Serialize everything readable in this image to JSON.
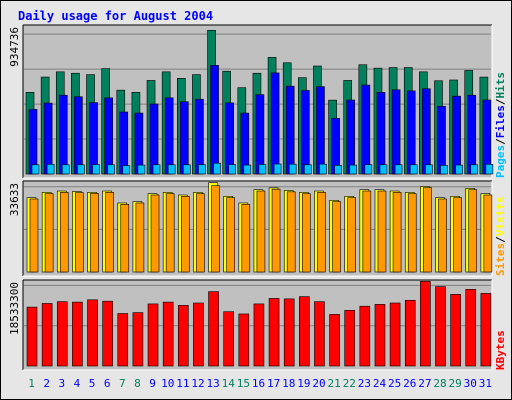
{
  "chart_data": [
    {
      "type": "bar",
      "title": "Daily usage for August 2004",
      "panel": "hits-files-pages",
      "categories": [
        "1",
        "2",
        "3",
        "4",
        "5",
        "6",
        "7",
        "8",
        "9",
        "10",
        "11",
        "12",
        "13",
        "14",
        "15",
        "16",
        "17",
        "18",
        "19",
        "20",
        "21",
        "22",
        "23",
        "24",
        "25",
        "26",
        "27",
        "28",
        "29",
        "30",
        "31"
      ],
      "weekend_days": [
        "1",
        "7",
        "8",
        "14",
        "15",
        "21",
        "22",
        "28",
        "29"
      ],
      "ylim": [
        0,
        934736
      ],
      "ymax_label": "934736",
      "series": [
        {
          "name": "Hits",
          "color": "#00805c",
          "values": [
            531000,
            630000,
            664000,
            655000,
            646000,
            685000,
            545000,
            531000,
            608000,
            664000,
            622000,
            646000,
            934000,
            668000,
            561000,
            655000,
            758000,
            723000,
            626000,
            702000,
            480000,
            608000,
            710000,
            688000,
            692000,
            692000,
            664000,
            606000,
            611000,
            673000,
            630000
          ]
        },
        {
          "name": "Files",
          "color": "#0000ff",
          "values": [
            420000,
            461000,
            512000,
            502000,
            464000,
            495000,
            403000,
            396000,
            455000,
            495000,
            470000,
            486000,
            706000,
            462000,
            396000,
            516000,
            657000,
            571000,
            543000,
            568000,
            362000,
            481000,
            578000,
            531000,
            547000,
            540000,
            554000,
            440000,
            506000,
            512000,
            481000
          ]
        },
        {
          "name": "Pages",
          "color": "#00c0ff",
          "values": [
            60000,
            63000,
            60000,
            60000,
            61000,
            60000,
            55000,
            58000,
            60000,
            60000,
            60000,
            61000,
            70000,
            61000,
            58000,
            62000,
            65000,
            64000,
            60000,
            64000,
            56000,
            58000,
            61000,
            60000,
            60000,
            60000,
            60000,
            56000,
            58000,
            60000,
            63000
          ]
        }
      ],
      "legend": [
        {
          "label": "Pages",
          "color": "#00c0ff"
        },
        {
          "label": "/",
          "color": "#000000"
        },
        {
          "label": "Files",
          "color": "#0000ff"
        },
        {
          "label": "/",
          "color": "#000000"
        },
        {
          "label": "Hits",
          "color": "#00805c"
        }
      ],
      "legend_position": "right-vertical",
      "grid": true
    },
    {
      "type": "bar",
      "panel": "sites-visits",
      "categories": [
        "1",
        "2",
        "3",
        "4",
        "5",
        "6",
        "7",
        "8",
        "9",
        "10",
        "11",
        "12",
        "13",
        "14",
        "15",
        "16",
        "17",
        "18",
        "19",
        "20",
        "21",
        "22",
        "23",
        "24",
        "25",
        "26",
        "27",
        "28",
        "29",
        "30",
        "31"
      ],
      "ylim": [
        0,
        33633
      ],
      "ymax_label": "33633",
      "series": [
        {
          "name": "Visits",
          "color": "#ffff00",
          "values": [
            28000,
            30000,
            30500,
            30300,
            30000,
            30500,
            26000,
            26500,
            29500,
            30000,
            29000,
            30000,
            33633,
            28500,
            26000,
            31000,
            31700,
            30700,
            30000,
            30500,
            27000,
            28500,
            31000,
            31000,
            30500,
            30000,
            32200,
            28000,
            28500,
            31500,
            29500
          ]
        },
        {
          "name": "Sites",
          "color": "#ff9900",
          "values": [
            27500,
            29500,
            30000,
            29900,
            29600,
            30000,
            25500,
            26000,
            29000,
            29500,
            28500,
            29500,
            32500,
            28000,
            25500,
            30500,
            31200,
            30200,
            29500,
            30000,
            26500,
            28000,
            30500,
            30500,
            30000,
            29500,
            31800,
            27500,
            28000,
            31000,
            29000
          ]
        }
      ],
      "legend": [
        {
          "label": "Sites",
          "color": "#ff9900"
        },
        {
          "label": "/",
          "color": "#000000"
        },
        {
          "label": "Visits",
          "color": "#ffff00"
        }
      ],
      "legend_position": "right-vertical",
      "grid": true
    },
    {
      "type": "bar",
      "panel": "kbytes",
      "categories": [
        "1",
        "2",
        "3",
        "4",
        "5",
        "6",
        "7",
        "8",
        "9",
        "10",
        "11",
        "12",
        "13",
        "14",
        "15",
        "16",
        "17",
        "18",
        "19",
        "20",
        "21",
        "22",
        "23",
        "24",
        "25",
        "26",
        "27",
        "28",
        "29",
        "30",
        "31"
      ],
      "ylim": [
        0,
        18533300
      ],
      "ymax_label": "18533300",
      "series": [
        {
          "name": "KBytes",
          "color": "#ff0000",
          "values": [
            12900000,
            13700000,
            14100000,
            14000000,
            14500000,
            14200000,
            11500000,
            11700000,
            13600000,
            14000000,
            13300000,
            13800000,
            16300000,
            11900000,
            11400000,
            13600000,
            14800000,
            14700000,
            15200000,
            14100000,
            11300000,
            12200000,
            13100000,
            13500000,
            13800000,
            14400000,
            18533300,
            17400000,
            15700000,
            16800000,
            15900000
          ]
        }
      ],
      "legend": [
        {
          "label": "KBytes",
          "color": "#ff0000"
        }
      ],
      "legend_position": "right-vertical",
      "grid": true
    }
  ],
  "colors": {
    "title": "#0000ff",
    "background": "#e6e6e6",
    "plot_background": "#c0c0c0",
    "weekday_label": "#0000ff",
    "weekend_label": "#00805c"
  }
}
